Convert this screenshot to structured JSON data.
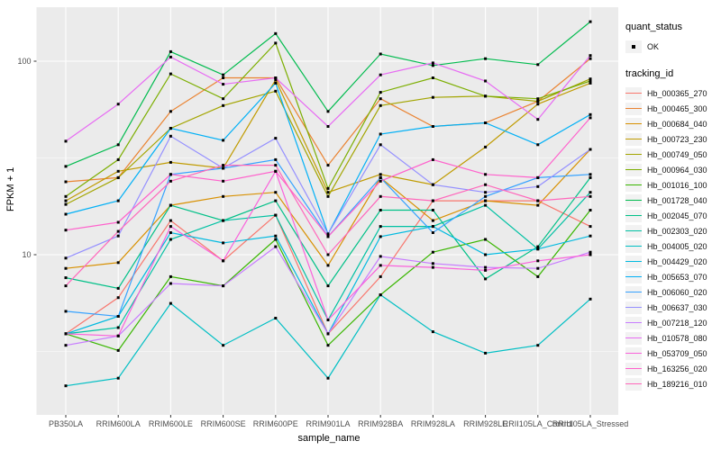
{
  "figure": {
    "y_axis_title": "FPKM + 1",
    "x_axis_title": "sample_name",
    "legend_quant_title": "quant_status",
    "legend_quant_ok_label": "OK",
    "legend_tracking_title": "tracking_id"
  },
  "colors": {
    "panel_background": "#ebebeb",
    "grid_line": "#ffffff",
    "tick_text": "#4d4d4d",
    "tick_mark": "#333333",
    "point": "#000000",
    "legend_key_background": "#f2f2f2"
  },
  "chart_data": {
    "type": "line",
    "scale_y": "log10",
    "ylim": [
      1.5,
      190
    ],
    "grid": true,
    "legend_position": "right",
    "title": "",
    "xlabel": "sample_name",
    "ylabel": "FPKM + 1",
    "y_ticks": [
      {
        "value": 10,
        "label": "10"
      },
      {
        "value": 100,
        "label": "100"
      }
    ],
    "y_minor": [
      3.1623,
      31.623
    ],
    "categories": [
      "PB350LA",
      "RRIM600LA",
      "RRIM600LE",
      "RRIM600SE",
      "RRIM600PE",
      "RRIM901LA",
      "RRIM928BA",
      "RRIM928LA",
      "RRIM928LE",
      "RRII105LA_Control",
      "RRII105LA_Stressed"
    ],
    "quant_status": {
      "title": "quant_status",
      "levels": [
        {
          "label": "OK",
          "shape": "point"
        }
      ]
    },
    "series": [
      {
        "name": "Hb_000365_270",
        "color": "#F8766D",
        "values": [
          3.9,
          6.0,
          15,
          9.3,
          16,
          3.9,
          7.7,
          19,
          19,
          19,
          14
        ]
      },
      {
        "name": "Hb_000465_300",
        "color": "#EA8331",
        "values": [
          23.8,
          25,
          55,
          82,
          82,
          29,
          64,
          46,
          48,
          62,
          103
        ]
      },
      {
        "name": "Hb_000684_040",
        "color": "#D89000",
        "values": [
          8.5,
          9.1,
          18,
          20,
          21,
          8.8,
          25,
          15,
          19,
          18,
          35
        ]
      },
      {
        "name": "Hb_000723_230",
        "color": "#C09B00",
        "values": [
          19,
          27,
          30,
          28,
          80,
          21,
          26,
          23,
          36,
          60,
          77
        ]
      },
      {
        "name": "Hb_000749_050",
        "color": "#A3A500",
        "values": [
          18.2,
          25,
          45,
          59,
          70,
          20,
          59,
          65,
          66,
          62,
          81
        ]
      },
      {
        "name": "Hb_000964_030",
        "color": "#7CAE00",
        "values": [
          20,
          31,
          86,
          64,
          124,
          22,
          69,
          82,
          66,
          64,
          79
        ]
      },
      {
        "name": "Hb_001016_100",
        "color": "#39B600",
        "values": [
          3.9,
          3.2,
          7.7,
          6.9,
          12,
          3.4,
          6.2,
          10.3,
          12,
          7.7,
          17
        ]
      },
      {
        "name": "Hb_001728_040",
        "color": "#00BB4E",
        "values": [
          28.6,
          37,
          112,
          85,
          139,
          55,
          109,
          95,
          103,
          96,
          160
        ]
      },
      {
        "name": "Hb_002045_070",
        "color": "#00C087",
        "values": [
          7.6,
          6.7,
          18,
          15,
          19,
          6.9,
          17,
          17,
          7.5,
          11,
          25
        ]
      },
      {
        "name": "Hb_002303_020",
        "color": "#00C1A3",
        "values": [
          3.9,
          4.2,
          12,
          15,
          16,
          4.6,
          14,
          14,
          18,
          10.7,
          21
        ]
      },
      {
        "name": "Hb_004005_020",
        "color": "#00BFC4",
        "values": [
          2.1,
          2.3,
          5.6,
          3.4,
          4.7,
          2.3,
          6.2,
          4.0,
          3.1,
          3.4,
          5.9
        ]
      },
      {
        "name": "Hb_004429_020",
        "color": "#00BAE0",
        "values": [
          3.9,
          4.8,
          13,
          11.5,
          12.5,
          3.9,
          12.4,
          14,
          10,
          10.7,
          12.5
        ]
      },
      {
        "name": "Hb_005653_070",
        "color": "#00B0F6",
        "values": [
          16.2,
          19,
          45,
          39,
          77,
          12.8,
          42,
          46,
          48,
          37,
          53
        ]
      },
      {
        "name": "Hb_006060_020",
        "color": "#35A2FF",
        "values": [
          5.1,
          4.8,
          26,
          28,
          31,
          12.4,
          25,
          13,
          20,
          25,
          26
        ]
      },
      {
        "name": "Hb_006637_030",
        "color": "#9590FF",
        "values": [
          9.6,
          12.5,
          41,
          28,
          40,
          12.8,
          37,
          23,
          21,
          22.5,
          35
        ]
      },
      {
        "name": "Hb_007218_120",
        "color": "#C77CFF",
        "values": [
          3.4,
          3.8,
          7.1,
          6.9,
          11,
          3.9,
          9.8,
          9.0,
          8.6,
          8.5,
          10.3
        ]
      },
      {
        "name": "Hb_010578_080",
        "color": "#E76BF3",
        "values": [
          38.6,
          60,
          105,
          76,
          82,
          46,
          85,
          98,
          79,
          50,
          107
        ]
      },
      {
        "name": "Hb_053709_050",
        "color": "#FA62DB",
        "values": [
          3.9,
          3.8,
          14,
          9.3,
          27,
          4.6,
          8.8,
          8.6,
          8.3,
          9.3,
          10
        ]
      },
      {
        "name": "Hb_163256_020",
        "color": "#FF61CC",
        "values": [
          13.4,
          14.7,
          26,
          24,
          27,
          12.4,
          24,
          31,
          26,
          25,
          51
        ]
      },
      {
        "name": "Hb_189216_010",
        "color": "#FF67BB",
        "values": [
          6.9,
          13.2,
          24,
          29,
          29,
          10,
          20,
          19,
          23,
          19,
          20
        ]
      }
    ]
  }
}
